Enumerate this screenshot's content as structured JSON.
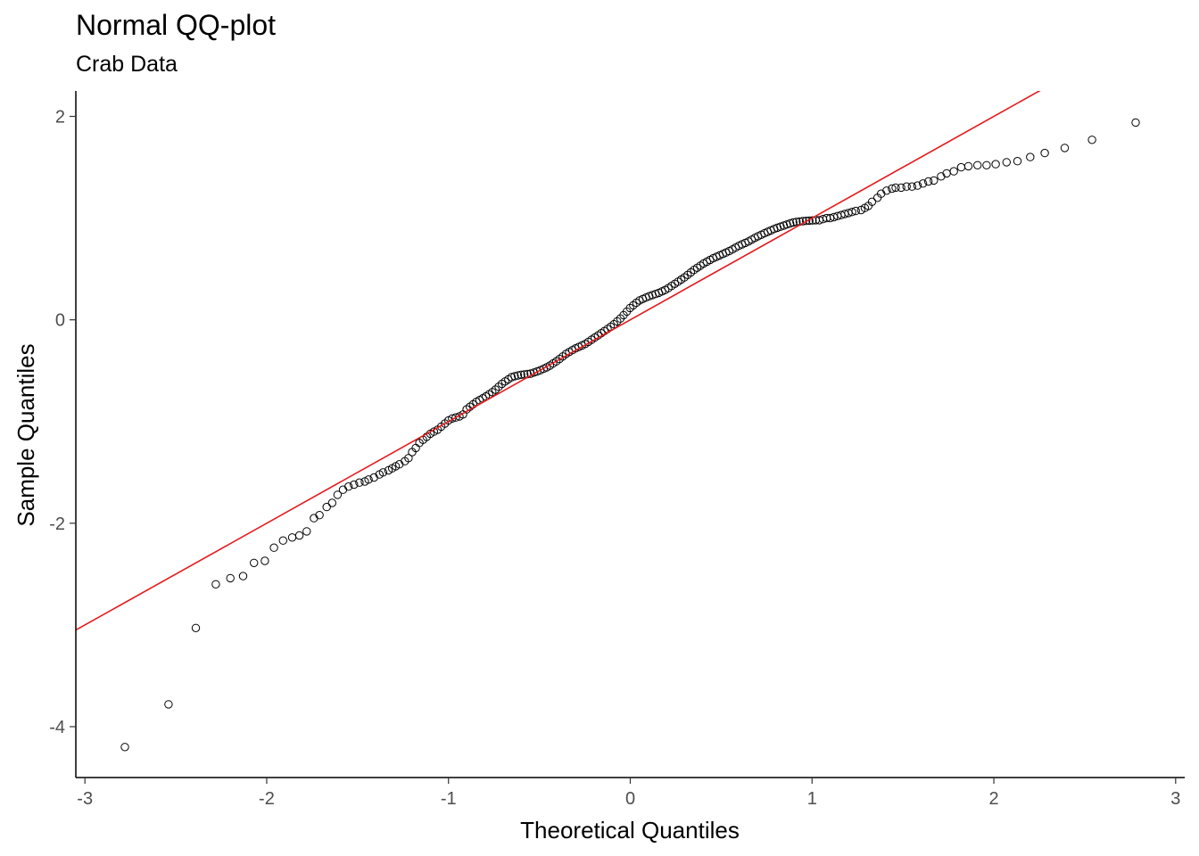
{
  "title": "Normal QQ-plot",
  "subtitle": "Crab Data",
  "chart_data": {
    "type": "scatter",
    "title": "Normal QQ-plot",
    "subtitle": "Crab Data",
    "xlabel": "Theoretical Quantiles",
    "ylabel": "Sample Quantiles",
    "xlim": [
      -3.05,
      3.05
    ],
    "ylim": [
      -4.5,
      2.25
    ],
    "x_ticks": [
      -3,
      -2,
      -1,
      0,
      1,
      2,
      3
    ],
    "y_ticks": [
      -4,
      -2,
      0,
      2
    ],
    "x_tick_labels": [
      "-3",
      "-2",
      "-1",
      "0",
      "1",
      "2",
      "3"
    ],
    "y_tick_labels": [
      "-4",
      "-2",
      "0",
      "2"
    ],
    "grid": false,
    "reference_line": {
      "intercept": 0,
      "slope": 1,
      "color": "#e41a1c"
    },
    "point_color": "#000000",
    "n": 200,
    "low_points": [
      [
        -2.78,
        -4.2
      ],
      [
        -2.54,
        -3.78
      ],
      [
        -2.39,
        -3.03
      ],
      [
        -2.28,
        -2.6
      ],
      [
        -2.2,
        -2.54
      ],
      [
        -2.13,
        -2.52
      ],
      [
        -2.07,
        -2.39
      ],
      [
        -2.01,
        -2.37
      ],
      [
        -1.96,
        -2.24
      ],
      [
        -1.91,
        -2.17
      ],
      [
        -1.86,
        -2.14
      ],
      [
        -1.82,
        -2.12
      ],
      [
        -1.78,
        -2.08
      ],
      [
        -1.74,
        -1.95
      ],
      [
        -1.71,
        -1.92
      ],
      [
        -1.67,
        -1.84
      ],
      [
        -1.64,
        -1.8
      ],
      [
        -1.61,
        -1.72
      ],
      [
        -1.58,
        -1.67
      ],
      [
        -1.55,
        -1.64
      ],
      [
        -1.52,
        -1.62
      ],
      [
        -1.49,
        -1.6
      ],
      [
        -1.46,
        -1.59
      ],
      [
        -1.44,
        -1.57
      ],
      [
        -1.41,
        -1.55
      ],
      [
        -1.38,
        -1.52
      ],
      [
        -1.36,
        -1.5
      ],
      [
        -1.33,
        -1.48
      ],
      [
        -1.31,
        -1.46
      ],
      [
        -1.29,
        -1.44
      ],
      [
        -1.27,
        -1.42
      ],
      [
        -1.24,
        -1.39
      ],
      [
        -1.22,
        -1.36
      ],
      [
        -1.2,
        -1.3
      ],
      [
        -1.18,
        -1.26
      ],
      [
        -1.16,
        -1.21
      ],
      [
        -1.14,
        -1.18
      ],
      [
        -1.12,
        -1.15
      ],
      [
        -1.1,
        -1.12
      ],
      [
        -1.08,
        -1.1
      ],
      [
        -1.06,
        -1.08
      ],
      [
        -1.04,
        -1.05
      ],
      [
        -1.02,
        -1.02
      ],
      [
        -1.0,
        -0.99
      ],
      [
        -0.98,
        -0.97
      ],
      [
        -0.96,
        -0.96
      ],
      [
        -0.94,
        -0.95
      ],
      [
        -0.92,
        -0.93
      ]
    ],
    "high_points": [
      [
        1.04,
        0.98
      ],
      [
        1.06,
        0.99
      ],
      [
        1.08,
        1.0
      ],
      [
        1.1,
        1.0
      ],
      [
        1.12,
        1.01
      ],
      [
        1.14,
        1.02
      ],
      [
        1.16,
        1.03
      ],
      [
        1.18,
        1.04
      ],
      [
        1.2,
        1.05
      ],
      [
        1.22,
        1.06
      ],
      [
        1.24,
        1.07
      ],
      [
        1.27,
        1.08
      ],
      [
        1.29,
        1.1
      ],
      [
        1.31,
        1.12
      ],
      [
        1.33,
        1.16
      ],
      [
        1.36,
        1.2
      ],
      [
        1.38,
        1.24
      ],
      [
        1.41,
        1.27
      ],
      [
        1.44,
        1.29
      ],
      [
        1.46,
        1.3
      ],
      [
        1.49,
        1.3
      ],
      [
        1.52,
        1.31
      ],
      [
        1.55,
        1.31
      ],
      [
        1.58,
        1.32
      ],
      [
        1.61,
        1.34
      ],
      [
        1.64,
        1.36
      ],
      [
        1.67,
        1.37
      ],
      [
        1.71,
        1.41
      ],
      [
        1.74,
        1.44
      ],
      [
        1.78,
        1.46
      ],
      [
        1.82,
        1.5
      ],
      [
        1.86,
        1.51
      ],
      [
        1.91,
        1.52
      ],
      [
        1.96,
        1.52
      ],
      [
        2.01,
        1.53
      ],
      [
        2.07,
        1.55
      ],
      [
        2.13,
        1.56
      ],
      [
        2.2,
        1.6
      ],
      [
        2.28,
        1.64
      ],
      [
        2.39,
        1.69
      ],
      [
        2.54,
        1.77
      ],
      [
        2.78,
        1.94
      ]
    ],
    "middle_points": {
      "x_range": [
        -0.9,
        1.02
      ],
      "count": 110,
      "y_anchors": [
        [
          -0.9,
          -0.88
        ],
        [
          -0.85,
          -0.81
        ],
        [
          -0.8,
          -0.76
        ],
        [
          -0.75,
          -0.7
        ],
        [
          -0.7,
          -0.62
        ],
        [
          -0.65,
          -0.56
        ],
        [
          -0.6,
          -0.54
        ],
        [
          -0.55,
          -0.53
        ],
        [
          -0.5,
          -0.5
        ],
        [
          -0.45,
          -0.46
        ],
        [
          -0.4,
          -0.4
        ],
        [
          -0.35,
          -0.33
        ],
        [
          -0.3,
          -0.28
        ],
        [
          -0.25,
          -0.24
        ],
        [
          -0.2,
          -0.18
        ],
        [
          -0.15,
          -0.12
        ],
        [
          -0.1,
          -0.06
        ],
        [
          -0.05,
          0.02
        ],
        [
          0.0,
          0.12
        ],
        [
          0.05,
          0.19
        ],
        [
          0.1,
          0.23
        ],
        [
          0.15,
          0.26
        ],
        [
          0.2,
          0.3
        ],
        [
          0.25,
          0.36
        ],
        [
          0.3,
          0.42
        ],
        [
          0.35,
          0.49
        ],
        [
          0.4,
          0.55
        ],
        [
          0.45,
          0.6
        ],
        [
          0.5,
          0.64
        ],
        [
          0.55,
          0.68
        ],
        [
          0.6,
          0.73
        ],
        [
          0.65,
          0.77
        ],
        [
          0.7,
          0.82
        ],
        [
          0.75,
          0.86
        ],
        [
          0.8,
          0.9
        ],
        [
          0.85,
          0.93
        ],
        [
          0.9,
          0.96
        ],
        [
          0.95,
          0.97
        ],
        [
          1.02,
          0.98
        ]
      ]
    }
  }
}
